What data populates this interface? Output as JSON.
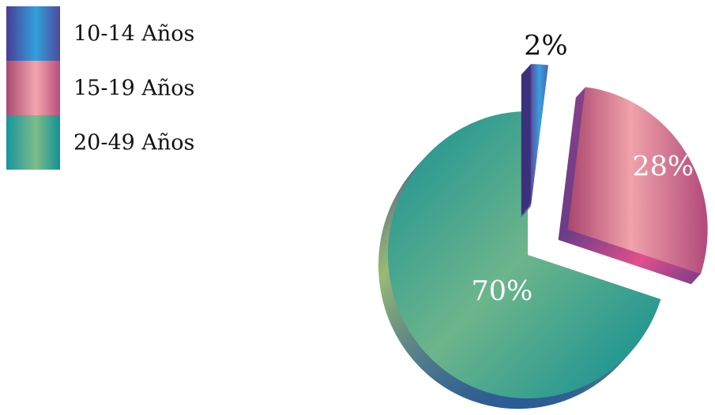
{
  "chart_data": {
    "type": "pie",
    "title": "",
    "legend_position": "top-left",
    "categories": [
      "10-14 Años",
      "15-19 Años",
      "20-49 Años"
    ],
    "values": [
      2,
      28,
      70
    ],
    "labels": [
      "2%",
      "28%",
      "70%"
    ],
    "colors": [
      "#3f7fc7",
      "#c45a85",
      "#239b97"
    ],
    "exploded": [
      true,
      true,
      false
    ]
  }
}
